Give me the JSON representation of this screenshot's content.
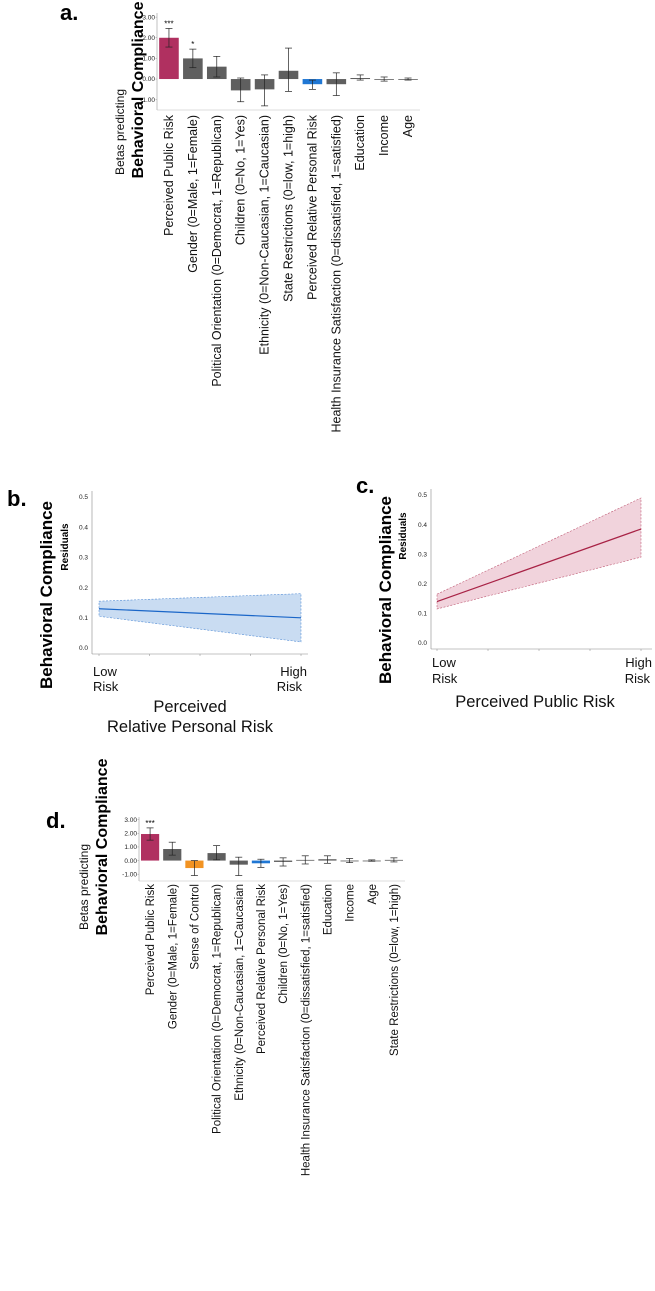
{
  "colors": {
    "bar_default": "#5f5f5f",
    "bar_public_risk": "#b03060",
    "bar_personal_risk": "#1f77d4",
    "bar_sense_of_control": "#f29322",
    "line_b": "#1a66c8",
    "band_b": "#c9dcf2",
    "line_c": "#a82245",
    "band_c": "#f1d3dc"
  },
  "chart_data": [
    {
      "panel": "a.",
      "type": "bar",
      "ylabel_line1": "Betas predicting",
      "ylabel_line2": "Behavioral Compliance",
      "yticks": [
        "3.00",
        "2.00",
        "1.00",
        "0.00",
        "-1.00"
      ],
      "ylim": [
        -1.5,
        3.2
      ],
      "categories": [
        "Perceived Public Risk",
        "Gender (0=Male, 1=Female)",
        "Political Orientation (0=Democrat, 1=Republican)",
        "Children (0=No, 1=Yes)",
        "Ethnicity (0=Non-Caucasian, 1=Caucasian)",
        "State Restrictions (0=low, 1=high)",
        "Perceived Relative Personal Risk",
        "Health Insurance Satisfaction (0=dissatisfied, 1=satisfied)",
        "Education",
        "Income",
        "Age"
      ],
      "values": [
        2.0,
        1.0,
        0.6,
        -0.55,
        -0.5,
        0.4,
        -0.25,
        -0.25,
        0.05,
        0.0,
        0.0
      ],
      "err_low": [
        1.55,
        0.55,
        0.1,
        -1.1,
        -1.3,
        -0.6,
        -0.5,
        -0.8,
        -0.05,
        -0.1,
        -0.05
      ],
      "err_high": [
        2.45,
        1.45,
        1.1,
        0.05,
        0.2,
        1.5,
        -0.05,
        0.3,
        0.2,
        0.1,
        0.05
      ],
      "significance": [
        "***",
        "*",
        "",
        "",
        "",
        "",
        "",
        "",
        "",
        "",
        ""
      ]
    },
    {
      "panel": "b.",
      "type": "line",
      "ylabel_big": "Behavioral Compliance",
      "ylabel_small": "Residuals",
      "yticks": [
        "0.5",
        "0.4",
        "0.3",
        "0.2",
        "0.1",
        "0.0"
      ],
      "ylim": [
        0.0,
        0.5
      ],
      "x_low_label": [
        "Low",
        "Risk"
      ],
      "x_high_label": [
        "High",
        "Risk"
      ],
      "xlabel_line1": "Perceived",
      "xlabel_line2": "Relative Personal Risk",
      "line": [
        0.13,
        0.1
      ],
      "band_low": [
        0.105,
        0.02
      ],
      "band_high": [
        0.155,
        0.18
      ]
    },
    {
      "panel": "c.",
      "type": "line",
      "ylabel_big": "Behavioral Compliance",
      "ylabel_small": "Residuals",
      "yticks": [
        "0.5",
        "0.4",
        "0.3",
        "0.2",
        "0.1",
        "0.0"
      ],
      "ylim": [
        0.0,
        0.5
      ],
      "x_low_label": [
        "Low",
        "Risk"
      ],
      "x_high_label": [
        "High",
        "Risk"
      ],
      "xlabel_line1": "Perceived Public Risk",
      "line": [
        0.14,
        0.385
      ],
      "band_low": [
        0.115,
        0.29
      ],
      "band_high": [
        0.165,
        0.49
      ]
    },
    {
      "panel": "d.",
      "type": "bar",
      "ylabel_line1": "Betas predicting",
      "ylabel_line2": "Behavioral Compliance",
      "yticks": [
        "3.00",
        "2.00",
        "1.00",
        "0.00",
        "-1.00"
      ],
      "ylim": [
        -1.5,
        3.2
      ],
      "categories": [
        "Perceived Public Risk",
        "Gender (0=Male, 1=Female)",
        "Sense of Control",
        "Political Orientation (0=Democrat, 1=Republican)",
        "Ethnicity (0=Non-Caucasian, 1=Caucasian",
        "Perceived Relative Personal Risk",
        "Children (0=No, 1=Yes)",
        "Health Insurance Satisfaction (0=dissatisfied, 1=satisfied)",
        "Education",
        "Income",
        "Age",
        "State Restrictions (0=low, 1=high)"
      ],
      "values": [
        1.95,
        0.85,
        -0.55,
        0.55,
        -0.3,
        -0.2,
        -0.1,
        0.05,
        0.1,
        0.0,
        0.0,
        0.05
      ],
      "err_low": [
        1.5,
        0.4,
        -1.1,
        0.05,
        -1.1,
        -0.5,
        -0.4,
        -0.25,
        -0.2,
        -0.15,
        -0.05,
        -0.1
      ],
      "err_high": [
        2.4,
        1.35,
        0.0,
        1.1,
        0.25,
        0.1,
        0.2,
        0.35,
        0.35,
        0.15,
        0.05,
        0.2
      ],
      "significance": [
        "***",
        "",
        "",
        "",
        "",
        "",
        "",
        "",
        "",
        "",
        "",
        ""
      ]
    }
  ]
}
